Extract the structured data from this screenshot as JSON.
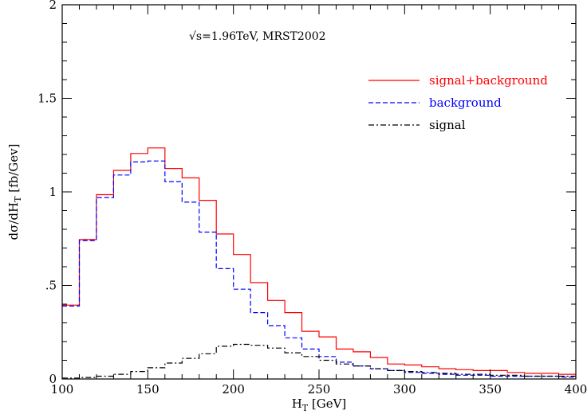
{
  "chart_data": {
    "type": "line",
    "step": true,
    "xlabel": "H",
    "xlabel_sub": "T",
    "xlabel_unit": " [GeV]",
    "ylabel": "dσ/dH",
    "ylabel_sub": "T",
    "ylabel_unit": " [fb/Gev]",
    "annotation": "√s=1.96TeV,  MRST2002",
    "xlim": [
      100,
      400
    ],
    "ylim": [
      0,
      2
    ],
    "x_ticks": [
      100,
      150,
      200,
      250,
      300,
      350,
      400
    ],
    "x_tick_labels": [
      "100",
      "150",
      "200",
      "250",
      "300",
      "350",
      "400"
    ],
    "y_ticks": [
      0,
      0.5,
      1,
      1.5,
      2
    ],
    "y_tick_labels": [
      "0",
      ".5",
      "1",
      "1.5",
      "2"
    ],
    "legend_position": "top-right",
    "bin_edges": [
      100,
      110,
      120,
      130,
      140,
      150,
      160,
      170,
      180,
      190,
      200,
      210,
      220,
      230,
      240,
      250,
      260,
      270,
      280,
      290,
      300,
      310,
      320,
      330,
      340,
      350,
      360,
      370,
      380,
      390,
      400
    ],
    "series": [
      {
        "name": "signal+background",
        "color": "#ff0000",
        "dash": "solid",
        "values": [
          0.395,
          0.745,
          0.985,
          1.115,
          1.205,
          1.235,
          1.125,
          1.075,
          0.955,
          0.775,
          0.665,
          0.515,
          0.42,
          0.355,
          0.255,
          0.225,
          0.16,
          0.145,
          0.115,
          0.08,
          0.075,
          0.065,
          0.055,
          0.05,
          0.045,
          0.045,
          0.035,
          0.03,
          0.03,
          0.025
        ]
      },
      {
        "name": "background",
        "color": "#0000ff",
        "dash": "dashed",
        "values": [
          0.39,
          0.74,
          0.97,
          1.09,
          1.16,
          1.165,
          1.055,
          0.945,
          0.785,
          0.59,
          0.48,
          0.355,
          0.285,
          0.22,
          0.16,
          0.12,
          0.09,
          0.07,
          0.055,
          0.045,
          0.035,
          0.03,
          0.025,
          0.02,
          0.02,
          0.015,
          0.015,
          0.015,
          0.015,
          0.01
        ]
      },
      {
        "name": "signal",
        "color": "#000000",
        "dash": "dashdot",
        "values": [
          0.005,
          0.008,
          0.015,
          0.025,
          0.04,
          0.06,
          0.085,
          0.11,
          0.135,
          0.175,
          0.185,
          0.18,
          0.165,
          0.14,
          0.12,
          0.1,
          0.08,
          0.07,
          0.055,
          0.045,
          0.04,
          0.035,
          0.03,
          0.025,
          0.025,
          0.02,
          0.02,
          0.015,
          0.015,
          0.015
        ]
      }
    ]
  }
}
